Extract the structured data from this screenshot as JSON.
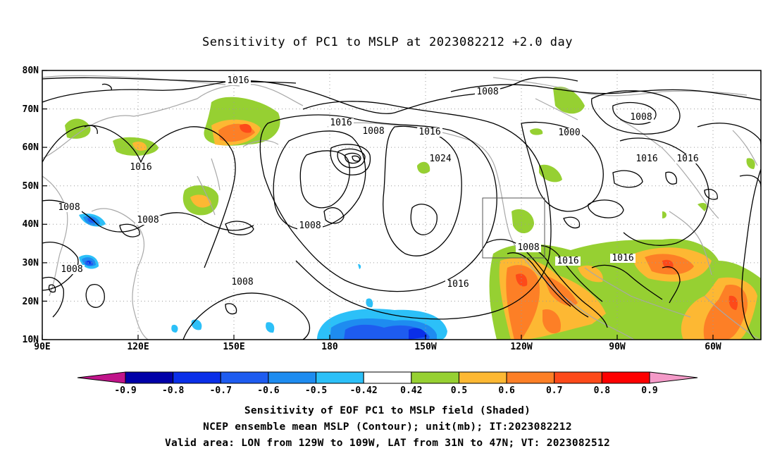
{
  "title": "Sensitivity of PC1 to MSLP at 2023082212 +2.0 day",
  "lat_labels": [
    "80N",
    "70N",
    "60N",
    "50N",
    "40N",
    "30N",
    "20N",
    "10N"
  ],
  "lon_labels": [
    "90E",
    "120E",
    "150E",
    "180",
    "150W",
    "120W",
    "90W",
    "60W"
  ],
  "contour_labels": [
    "1016",
    "1008",
    "1016",
    "1008",
    "1016",
    "1000",
    "1016",
    "1016",
    "1024",
    "1008",
    "1016",
    "1008",
    "1008",
    "1008",
    "1008",
    "1008",
    "1016",
    "1016",
    "1016",
    "1008"
  ],
  "colorbar": {
    "labels": [
      "-0.9",
      "-0.8",
      "-0.7",
      "-0.6",
      "-0.5",
      "-0.42",
      "0.42",
      "0.5",
      "0.6",
      "0.7",
      "0.8",
      "0.9"
    ],
    "colors": [
      "#0000a8",
      "#0a2fe8",
      "#1e5cf0",
      "#1e8cf0",
      "#2cc0f8",
      "#ffffff",
      "#96d032",
      "#fdb833",
      "#fd7f26",
      "#fd4a1a",
      "#fe0000"
    ],
    "low_extension_color": "#c0148a",
    "high_extension_color": "#f49ac8"
  },
  "captions": [
    "Sensitivity of EOF PC1 to MSLP field (Shaded)",
    "NCEP ensemble mean MSLP (Contour); unit(mb); IT:2023082212",
    "Valid area: LON from 129W to 109W, LAT from 31N to 47N; VT: 2023082512"
  ],
  "valid_area": {
    "lon_min": -129,
    "lon_max": -109,
    "lat_min": 31,
    "lat_max": 47
  }
}
